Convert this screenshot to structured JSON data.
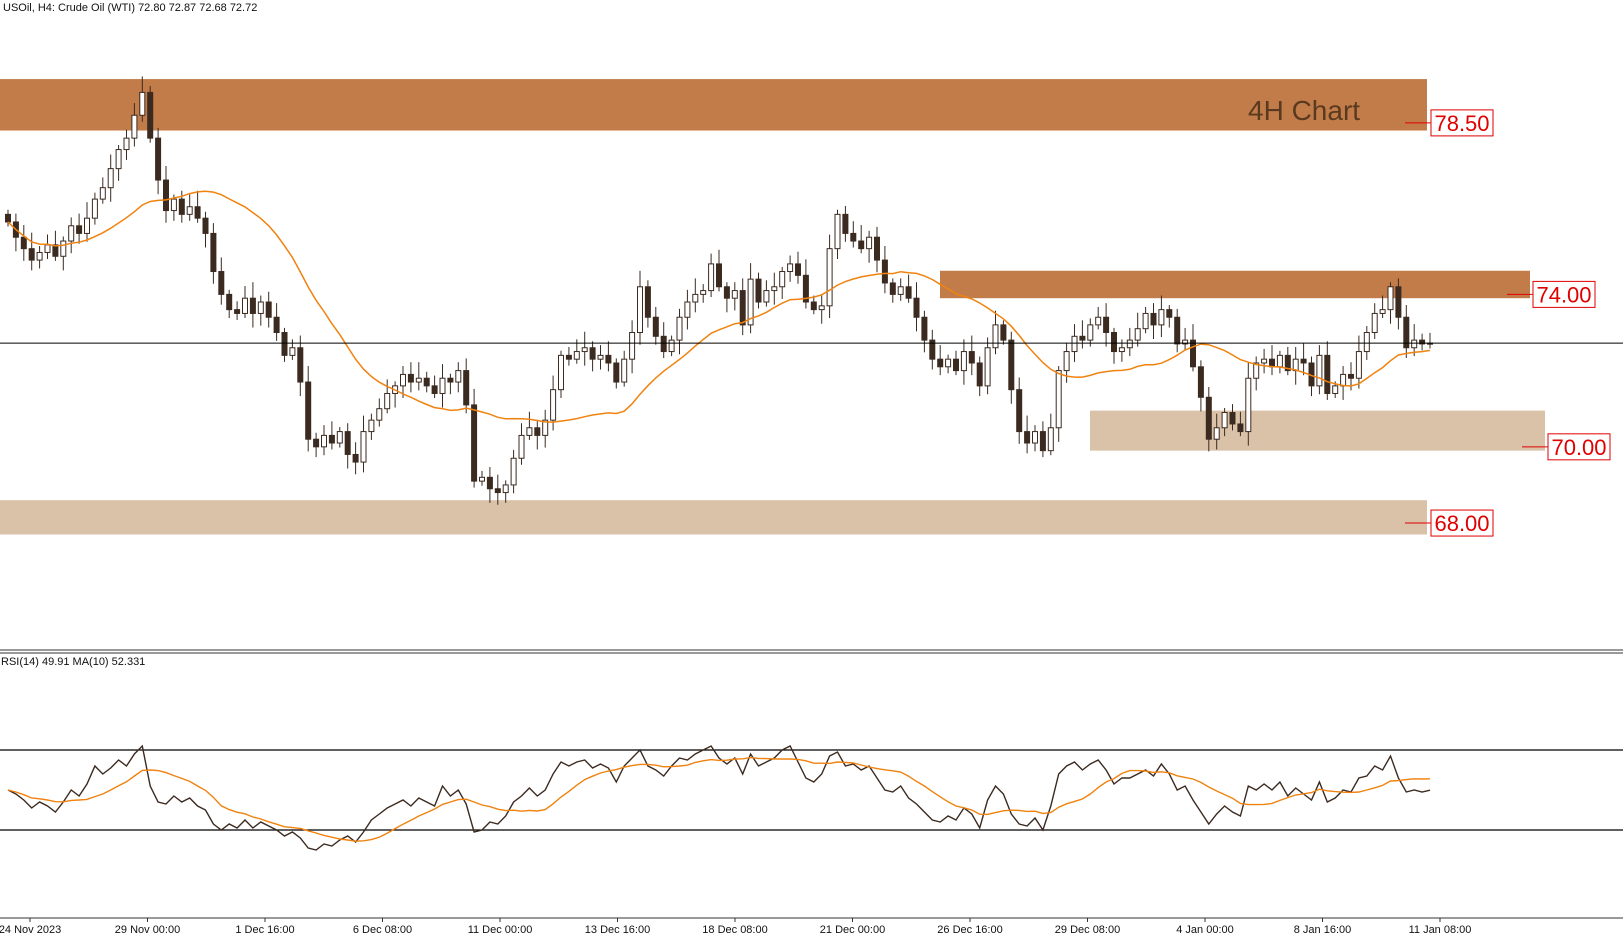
{
  "header": {
    "symbol_info": "USOil, H4:  Crude Oil (WTI)  72.80 72.87 72.68 72.72",
    "annotation": "4H Chart"
  },
  "colors": {
    "candle_bull_fill": "#ffffff",
    "candle_bear_fill": "#3b2a20",
    "candle_outline": "#3b2a20",
    "ma_line": "#f0820f",
    "rsi_line": "#3b2a20",
    "resistance_zone": "#c27c4a",
    "support_zone": "#d9c2a8",
    "level_label": "#e00000",
    "title_text": "#5a3a1e"
  },
  "chart_data": [
    {
      "type": "candlestick",
      "title": "",
      "series_name": "USOil",
      "ylim": [
        64.8,
        81.2
      ],
      "current_price": 72.72,
      "ohlc_last": {
        "open": 72.8,
        "high": 72.87,
        "low": 72.68,
        "close": 72.72
      },
      "x_ticks": [
        "24 Nov 2023",
        "29 Nov 00:00",
        "1 Dec 16:00",
        "6 Dec 08:00",
        "11 Dec 00:00",
        "13 Dec 16:00",
        "18 Dec 08:00",
        "21 Dec 00:00",
        "26 Dec 16:00",
        "29 Dec 08:00",
        "4 Jan 00:00",
        "8 Jan 16:00",
        "11 Jan 08:00"
      ],
      "levels": [
        {
          "label": "78.50",
          "value": 78.5,
          "zone": [
            78.3,
            79.65
          ],
          "kind": "resistance",
          "span": "full"
        },
        {
          "label": "74.00",
          "value": 74.0,
          "zone": [
            73.9,
            74.62
          ],
          "kind": "resistance",
          "span": "partial"
        },
        {
          "label": "70.00",
          "value": 70.0,
          "zone": [
            69.9,
            70.95
          ],
          "kind": "support",
          "span": "partial"
        },
        {
          "label": "68.00",
          "value": 68.0,
          "zone": [
            67.7,
            68.6
          ],
          "kind": "support",
          "span": "full"
        }
      ],
      "close": [
        75.9,
        75.5,
        75.2,
        74.9,
        75.1,
        75.3,
        75.0,
        75.4,
        75.8,
        75.6,
        76.0,
        76.5,
        76.8,
        77.3,
        77.8,
        78.1,
        78.7,
        79.3,
        78.1,
        77.0,
        76.2,
        76.5,
        76.1,
        76.3,
        76.0,
        75.6,
        74.6,
        74.0,
        73.6,
        73.5,
        73.9,
        73.5,
        73.8,
        73.4,
        73.0,
        72.4,
        72.6,
        71.7,
        70.2,
        70.0,
        70.3,
        70.1,
        70.4,
        69.8,
        69.6,
        70.4,
        70.7,
        71.0,
        71.4,
        71.6,
        71.9,
        71.7,
        71.8,
        71.6,
        71.4,
        71.8,
        71.7,
        72.0,
        71.1,
        69.1,
        69.2,
        68.9,
        68.8,
        69.0,
        69.7,
        70.3,
        70.5,
        70.3,
        70.7,
        71.5,
        72.4,
        72.3,
        72.5,
        72.6,
        72.3,
        72.4,
        72.2,
        71.7,
        72.3,
        73.0,
        74.2,
        73.4,
        72.9,
        72.5,
        72.8,
        73.4,
        73.8,
        74.0,
        74.1,
        74.8,
        74.2,
        73.9,
        74.1,
        73.2,
        74.4,
        73.8,
        74.1,
        74.2,
        74.6,
        74.8,
        74.5,
        73.8,
        73.6,
        73.7,
        75.2,
        76.1,
        75.6,
        75.4,
        75.2,
        75.5,
        74.9,
        74.3,
        74.0,
        74.2,
        73.9,
        73.4,
        72.8,
        72.3,
        72.1,
        72.3,
        72.0,
        72.5,
        72.2,
        71.6,
        72.6,
        73.2,
        72.8,
        71.5,
        70.4,
        70.1,
        70.4,
        69.9,
        70.5,
        72.0,
        72.5,
        72.9,
        72.8,
        73.2,
        73.4,
        73.0,
        72.5,
        72.6,
        72.8,
        73.1,
        73.5,
        73.2,
        73.6,
        73.4,
        72.7,
        72.8,
        72.1,
        71.3,
        70.2,
        70.5,
        70.9,
        70.6,
        70.4,
        71.8,
        72.2,
        72.3,
        72.1,
        72.4,
        72.0,
        72.3,
        72.2,
        71.6,
        72.4,
        71.4,
        71.6,
        71.9,
        71.8,
        72.5,
        73.0,
        73.5,
        73.6,
        74.2,
        73.4,
        72.6,
        72.8,
        72.7,
        72.72
      ],
      "ma_period_note": "",
      "ma_color": "#f0820f"
    },
    {
      "type": "line",
      "title": "RSI(14) 49.91 MA(10) 52.331",
      "series": [
        {
          "name": "RSI(14)",
          "last": 49.91
        },
        {
          "name": "MA(10)",
          "last": 52.331
        }
      ],
      "ylim": [
        0,
        100
      ],
      "levels": [
        70,
        30
      ],
      "rsi_values": [
        50,
        48,
        45,
        41,
        44,
        42,
        39,
        44,
        50,
        47,
        53,
        62,
        58,
        61,
        65,
        62,
        68,
        72,
        52,
        44,
        43,
        47,
        44,
        46,
        42,
        40,
        33,
        30,
        33,
        31,
        35,
        31,
        34,
        32,
        30,
        27,
        29,
        26,
        21,
        20,
        23,
        22,
        25,
        27,
        24,
        29,
        35,
        38,
        41,
        43,
        45,
        42,
        46,
        44,
        42,
        52,
        47,
        50,
        43,
        29,
        30,
        34,
        33,
        37,
        44,
        47,
        51,
        47,
        50,
        58,
        64,
        62,
        64,
        65,
        61,
        63,
        61,
        54,
        62,
        66,
        70,
        62,
        60,
        57,
        62,
        66,
        65,
        68,
        70,
        72,
        66,
        63,
        66,
        58,
        68,
        62,
        64,
        66,
        70,
        72,
        64,
        56,
        54,
        58,
        67,
        69,
        62,
        63,
        60,
        62,
        56,
        50,
        49,
        52,
        46,
        43,
        39,
        35,
        34,
        37,
        35,
        41,
        38,
        31,
        45,
        52,
        48,
        38,
        33,
        32,
        36,
        30,
        42,
        58,
        62,
        64,
        60,
        63,
        65,
        60,
        53,
        56,
        56,
        58,
        60,
        57,
        63,
        58,
        50,
        52,
        45,
        39,
        33,
        38,
        42,
        39,
        37,
        52,
        50,
        53,
        50,
        54,
        47,
        51,
        48,
        45,
        54,
        44,
        46,
        50,
        49,
        56,
        57,
        62,
        60,
        67,
        56,
        49,
        50,
        49,
        49.91
      ]
    }
  ]
}
